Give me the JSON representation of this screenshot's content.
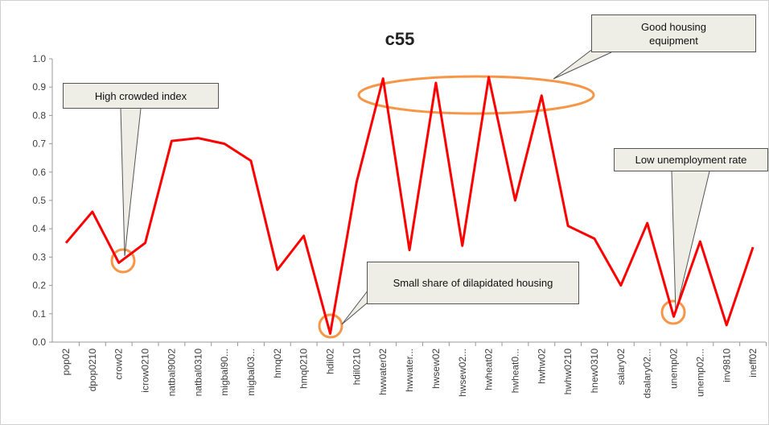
{
  "chart_data": {
    "type": "line",
    "title": "c55",
    "categories": [
      "pop02",
      "dpop0210",
      "crow02",
      "icrow0210",
      "natbal9002",
      "natbal0310",
      "migbal90...",
      "migbal03...",
      "hmq02",
      "hmq0210",
      "hdil02",
      "hdil0210",
      "hwwater02",
      "hwwater...",
      "hwsew02",
      "hwsew02...",
      "hwheat02",
      "hwheat0...",
      "hwhw02",
      "hwhw0210",
      "hnew0310",
      "salary02",
      "dsalary02...",
      "unemp02",
      "unemp02...",
      "inv9810",
      "ineff02"
    ],
    "series": [
      {
        "name": "c55",
        "color": "#ff0000",
        "values": [
          0.35,
          0.46,
          0.28,
          0.35,
          0.71,
          0.72,
          0.7,
          0.64,
          0.255,
          0.375,
          0.03,
          0.565,
          0.93,
          0.325,
          0.915,
          0.34,
          0.935,
          0.5,
          0.87,
          0.41,
          0.365,
          0.2,
          0.42,
          0.09,
          0.355,
          0.06,
          0.335
        ]
      }
    ],
    "ylim": [
      0,
      1
    ],
    "yticks": [
      {
        "value": 0,
        "label": "0.0"
      },
      0.1,
      0.2,
      0.3,
      0.4,
      0.5,
      0.6,
      0.7,
      0.8,
      0.9,
      {
        "value": 1,
        "label": "1.0"
      }
    ],
    "grid": false,
    "annotations": [
      "High crowded index",
      "Good housing equipment",
      "Low unemployment rate",
      "Small share of dilapidated housing"
    ]
  }
}
